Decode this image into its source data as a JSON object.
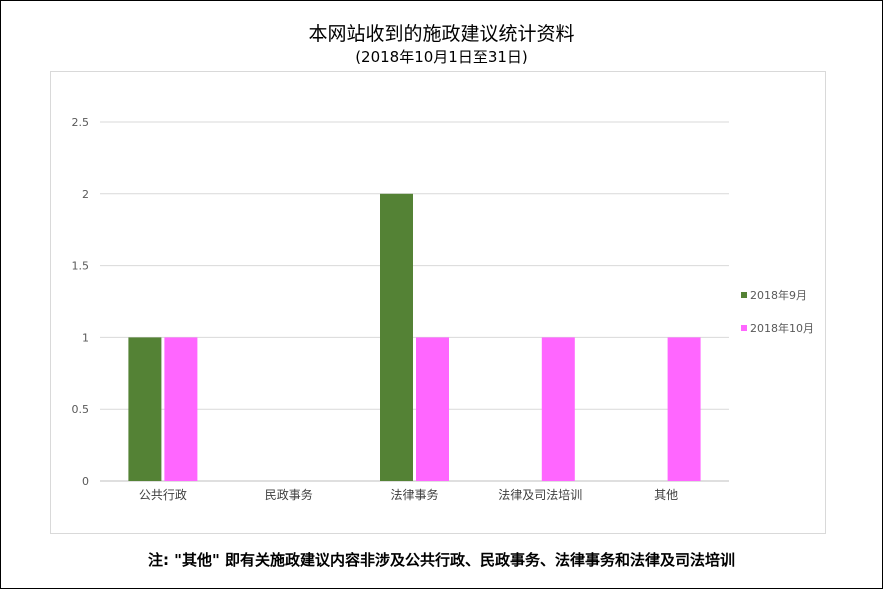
{
  "chart_data": {
    "type": "bar",
    "title": "本网站收到的施政建议统计资料",
    "subtitle": "(2018年10月1日至31日)",
    "categories": [
      "公共行政",
      "民政事务",
      "法律事务",
      "法律及司法培训",
      "其他"
    ],
    "series": [
      {
        "name": "2018年9月",
        "values": [
          1,
          0,
          2,
          0,
          0
        ],
        "color": "#548235"
      },
      {
        "name": "2018年10月",
        "values": [
          1,
          0,
          1,
          1,
          1
        ],
        "color": "#ff66ff"
      }
    ],
    "y_ticks": [
      "0",
      "0.5",
      "1",
      "1.5",
      "2",
      "2.5"
    ],
    "ylim": [
      0,
      2.5
    ],
    "grid": true,
    "legend_position": "right"
  },
  "note": "注: \"其他\" 即有关施政建议内容非涉及公共行政、民政事务、法律事务和法律及司法培训"
}
